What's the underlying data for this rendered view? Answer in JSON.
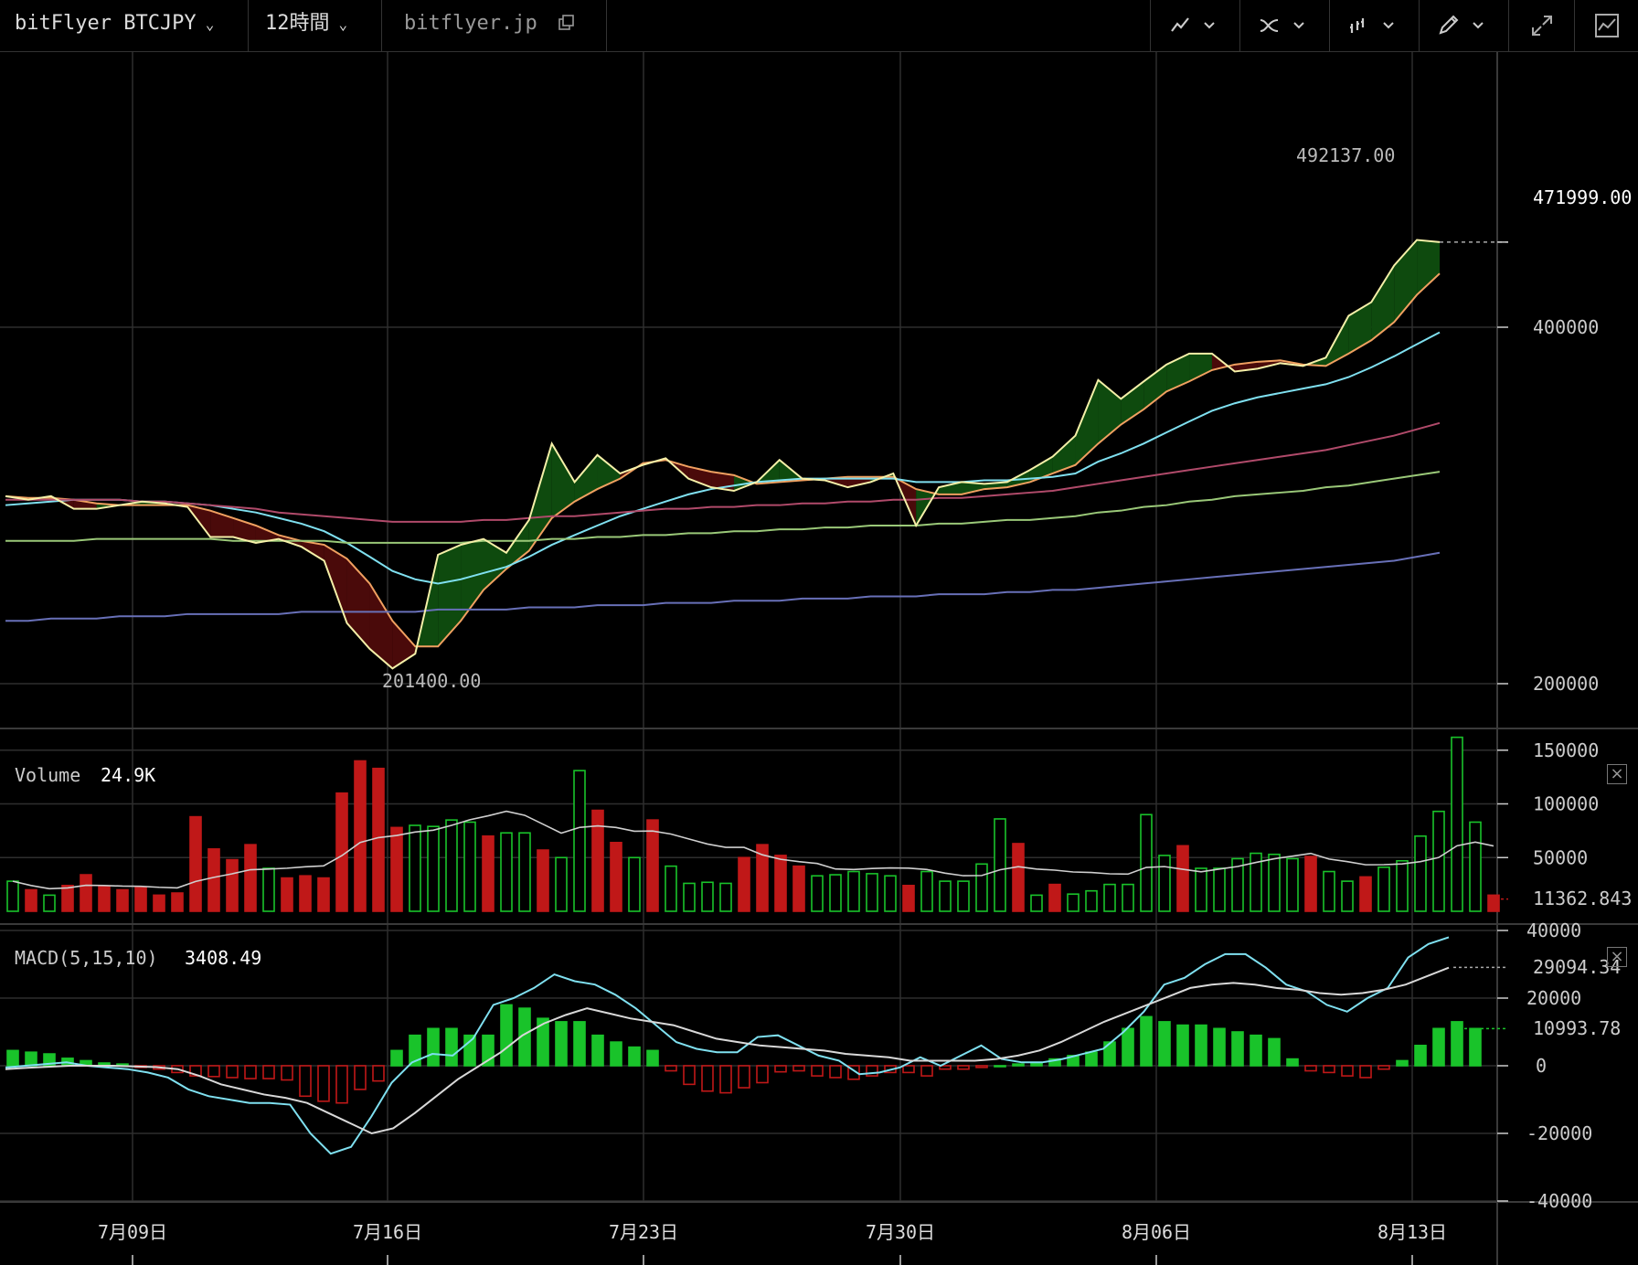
{
  "toolbar": {
    "symbol": "bitFlyer BTCJPY",
    "interval": "12時間",
    "site": "bitflyer.jp"
  },
  "icons": [
    "line-chart-icon",
    "indicator-icon",
    "bar-style-icon",
    "pencil-icon",
    "fullscreen-icon",
    "chart-settings-icon",
    "external-link-icon"
  ],
  "colors": {
    "up": "#19c32a",
    "down": "#c01818",
    "ma5": "#f5f0a8",
    "ma10": "#f0a060",
    "ma20": "#7fe0f0",
    "ma50": "#b04a6a",
    "ma75": "#9ac878",
    "ma200": "#6870b8",
    "macd": "#7fe0f0",
    "signal": "#d8d8d8"
  },
  "chart_data": [
    {
      "type": "candlestick",
      "panel": "price",
      "x_ticks": [
        "7月09日",
        "7月16日",
        "7月23日",
        "7月30日",
        "8月06日",
        "8月13日"
      ],
      "y_ticks": [
        200000,
        400000
      ],
      "last_price_label": "471999.00",
      "high_label": "492137.00",
      "low_label": "201400.00",
      "ylim": [
        180000,
        520000
      ],
      "close": [
        288000,
        286000,
        288000,
        281000,
        281000,
        283000,
        285000,
        284000,
        282000,
        266000,
        266000,
        263000,
        265000,
        261000,
        254000,
        225000,
        214000,
        206000,
        212000,
        257000,
        262000,
        265000,
        258000,
        275000,
        319000,
        296000,
        312000,
        301000,
        306000,
        310000,
        298000,
        293000,
        291000,
        296000,
        309000,
        298000,
        297000,
        293000,
        296000,
        301000,
        272000,
        293000,
        296000,
        295000,
        296000,
        303000,
        311000,
        324000,
        361000,
        348000,
        360000,
        372000,
        380000,
        380000,
        367000,
        369000,
        373000,
        371000,
        377000,
        409000,
        420000,
        451000,
        474000,
        472000
      ],
      "ma_lines": [
        {
          "period": 5,
          "values": [
            288000,
            287000,
            287000,
            286000,
            284000,
            283000,
            283000,
            283000,
            283000,
            280000,
            276000,
            272000,
            267000,
            264000,
            262000,
            255000,
            243000,
            226000,
            215000,
            215000,
            226000,
            240000,
            250000,
            259000,
            276000,
            285000,
            292000,
            298000,
            307000,
            309000,
            305000,
            302000,
            300000,
            295000,
            296000,
            297000,
            298000,
            299000,
            299000,
            299000,
            292000,
            289000,
            289000,
            292000,
            293000,
            296000,
            301000,
            306000,
            319000,
            331000,
            341000,
            353000,
            360000,
            368000,
            372000,
            374000,
            375000,
            372000,
            371000,
            380000,
            390000,
            404000,
            426000,
            444000
          ]
        },
        {
          "period": 20,
          "values": [
            283000,
            284000,
            285000,
            286000,
            286000,
            286000,
            285000,
            285000,
            284000,
            283000,
            281000,
            279000,
            276000,
            273000,
            269000,
            263000,
            256000,
            249000,
            245000,
            243000,
            245000,
            248000,
            251000,
            256000,
            262000,
            267000,
            272000,
            277000,
            281000,
            285000,
            289000,
            292000,
            294000,
            296000,
            297000,
            298000,
            298000,
            298000,
            298000,
            298000,
            296000,
            296000,
            296000,
            297000,
            297000,
            298000,
            299000,
            301000,
            308000,
            313000,
            319000,
            326000,
            333000,
            340000,
            345000,
            349000,
            352000,
            355000,
            358000,
            363000,
            370000,
            378000,
            387000,
            396000
          ]
        },
        {
          "period": 50,
          "values": [
            286000,
            286000,
            286000,
            286000,
            286000,
            286000,
            285000,
            285000,
            284000,
            283000,
            282000,
            281000,
            279000,
            278000,
            277000,
            276000,
            275000,
            274000,
            274000,
            274000,
            274000,
            275000,
            275000,
            276000,
            277000,
            277000,
            278000,
            279000,
            280000,
            281000,
            281000,
            282000,
            282000,
            283000,
            283000,
            284000,
            284000,
            285000,
            285000,
            286000,
            286000,
            287000,
            287000,
            288000,
            289000,
            290000,
            291000,
            293000,
            295000,
            297000,
            299000,
            301000,
            303000,
            305000,
            307000,
            309000,
            311000,
            313000,
            315000,
            318000,
            321000,
            324000,
            328000,
            332000
          ]
        },
        {
          "period": 75,
          "values": [
            264000,
            264000,
            264000,
            264000,
            265000,
            265000,
            265000,
            265000,
            265000,
            265000,
            264000,
            264000,
            264000,
            264000,
            264000,
            263000,
            263000,
            263000,
            263000,
            263000,
            263000,
            264000,
            264000,
            264000,
            265000,
            265000,
            266000,
            266000,
            267000,
            267000,
            268000,
            268000,
            269000,
            269000,
            270000,
            270000,
            271000,
            271000,
            272000,
            272000,
            272000,
            273000,
            273000,
            274000,
            275000,
            275000,
            276000,
            277000,
            279000,
            280000,
            282000,
            283000,
            285000,
            286000,
            288000,
            289000,
            290000,
            291000,
            293000,
            294000,
            296000,
            298000,
            300000,
            302000
          ]
        },
        {
          "period": 200,
          "values": [
            226000,
            226000,
            227000,
            227000,
            227000,
            228000,
            228000,
            228000,
            229000,
            229000,
            229000,
            229000,
            229000,
            230000,
            230000,
            230000,
            230000,
            230000,
            230000,
            231000,
            231000,
            231000,
            231000,
            232000,
            232000,
            232000,
            233000,
            233000,
            233000,
            234000,
            234000,
            234000,
            235000,
            235000,
            235000,
            236000,
            236000,
            236000,
            237000,
            237000,
            237000,
            238000,
            238000,
            238000,
            239000,
            239000,
            240000,
            240000,
            241000,
            242000,
            243000,
            244000,
            245000,
            246000,
            247000,
            248000,
            249000,
            250000,
            251000,
            252000,
            253000,
            254000,
            256000,
            258000
          ]
        }
      ]
    },
    {
      "type": "bar",
      "panel": "volume",
      "title": "Volume",
      "value_label": "24.9K",
      "last_label": "11362.843",
      "y_ticks": [
        50000,
        100000,
        150000
      ],
      "ylim": [
        0,
        160000
      ],
      "values": [
        28000,
        20000,
        15000,
        24000,
        34000,
        23000,
        20000,
        22000,
        15000,
        17000,
        88000,
        58000,
        48000,
        62000,
        40000,
        31000,
        33000,
        31000,
        110000,
        140000,
        133000,
        78000,
        80000,
        79000,
        85000,
        83000,
        70000,
        73000,
        73000,
        57000,
        50000,
        131000,
        94000,
        64000,
        50000,
        85000,
        42000,
        26000,
        27000,
        26000,
        50000,
        62000,
        52000,
        42000,
        33000,
        34000,
        37000,
        35000,
        33000,
        24000,
        37000,
        28000,
        28000,
        44000,
        86000,
        63000,
        15000,
        25000,
        16000,
        19000,
        25000,
        25000,
        90000,
        52000,
        61000,
        40000,
        40000,
        49000,
        54000,
        53000,
        49000,
        51000,
        37000,
        28000,
        32000,
        41000,
        47000,
        70000,
        93000,
        162000,
        83000,
        15000
      ],
      "up": [
        true,
        false,
        true,
        false,
        false,
        false,
        false,
        false,
        false,
        false,
        false,
        false,
        false,
        false,
        true,
        false,
        false,
        false,
        false,
        false,
        false,
        false,
        true,
        true,
        true,
        true,
        false,
        true,
        true,
        false,
        true,
        true,
        false,
        false,
        true,
        false,
        true,
        true,
        true,
        true,
        false,
        false,
        false,
        false,
        true,
        true,
        true,
        true,
        true,
        false,
        true,
        true,
        true,
        true,
        true,
        false,
        true,
        false,
        true,
        true,
        true,
        true,
        true,
        true,
        false,
        true,
        true,
        true,
        true,
        true,
        true,
        false,
        true,
        true,
        false,
        true,
        true,
        true,
        true,
        true,
        true,
        false
      ]
    },
    {
      "type": "bar",
      "panel": "macd",
      "title": "MACD(5,15,10)",
      "value_label": "3408.49",
      "labels": [
        "29094.34",
        "10993.78"
      ],
      "y_ticks": [
        -40000,
        -20000,
        0,
        20000,
        40000
      ],
      "ylim": [
        -40000,
        40000
      ],
      "histogram": [
        4500,
        4000,
        3500,
        2200,
        1500,
        800,
        500,
        -500,
        -1000,
        -2000,
        -3000,
        -3200,
        -3500,
        -3800,
        -3800,
        -4200,
        -9000,
        -10500,
        -11000,
        -7000,
        -4500,
        4500,
        9000,
        11000,
        11000,
        9000,
        9000,
        18000,
        17000,
        14000,
        13000,
        13000,
        9000,
        7000,
        5500,
        4500,
        -1500,
        -5500,
        -7500,
        -8000,
        -6500,
        -5000,
        -1800,
        -1500,
        -3000,
        -3500,
        -4000,
        -3000,
        -2000,
        -2000,
        -3000,
        -1000,
        -1000,
        -500,
        0,
        500,
        1000,
        2000,
        3000,
        4000,
        7000,
        11000,
        14500,
        13000,
        12000,
        12000,
        11000,
        10000,
        9000,
        8000,
        2000,
        -1500,
        -2000,
        -3000,
        -3500,
        -1000,
        1500,
        6000,
        11000,
        13000,
        11000
      ],
      "macd": [
        -500,
        0,
        500,
        1000,
        0,
        -500,
        -1000,
        -2000,
        -3500,
        -7000,
        -9000,
        -10000,
        -11000,
        -11000,
        -11500,
        -20000,
        -26000,
        -24000,
        -15000,
        -5000,
        1000,
        3500,
        3000,
        8000,
        18000,
        20000,
        23000,
        27000,
        25000,
        24000,
        21000,
        17000,
        12000,
        7000,
        5000,
        4000,
        4000,
        8500,
        9000,
        6000,
        3000,
        1500,
        -2500,
        -2000,
        -500,
        2500,
        0,
        3000,
        6000,
        2000,
        1000,
        1000,
        2000,
        3500,
        5000,
        10000,
        16000,
        24000,
        26000,
        30000,
        33000,
        33000,
        29000,
        24000,
        22000,
        18000,
        16000,
        20000,
        23000,
        32000,
        36000,
        38000
      ],
      "signal": [
        -1000,
        -600,
        -300,
        0,
        0,
        0,
        -200,
        -400,
        -1000,
        -3000,
        -5500,
        -7000,
        -8500,
        -9500,
        -11000,
        -14000,
        -17000,
        -20000,
        -18500,
        -14000,
        -9000,
        -4000,
        0,
        4000,
        9000,
        12500,
        15000,
        17000,
        15500,
        14000,
        13000,
        12000,
        10000,
        8000,
        7000,
        6000,
        5500,
        5000,
        4500,
        3500,
        3000,
        2500,
        1500,
        1500,
        1500,
        1500,
        2000,
        3000,
        4500,
        7000,
        10000,
        13000,
        15500,
        18000,
        20500,
        23000,
        24000,
        24500,
        24000,
        23000,
        22500,
        21500,
        21000,
        21500,
        22500,
        24000,
        26500,
        29000
      ]
    }
  ]
}
